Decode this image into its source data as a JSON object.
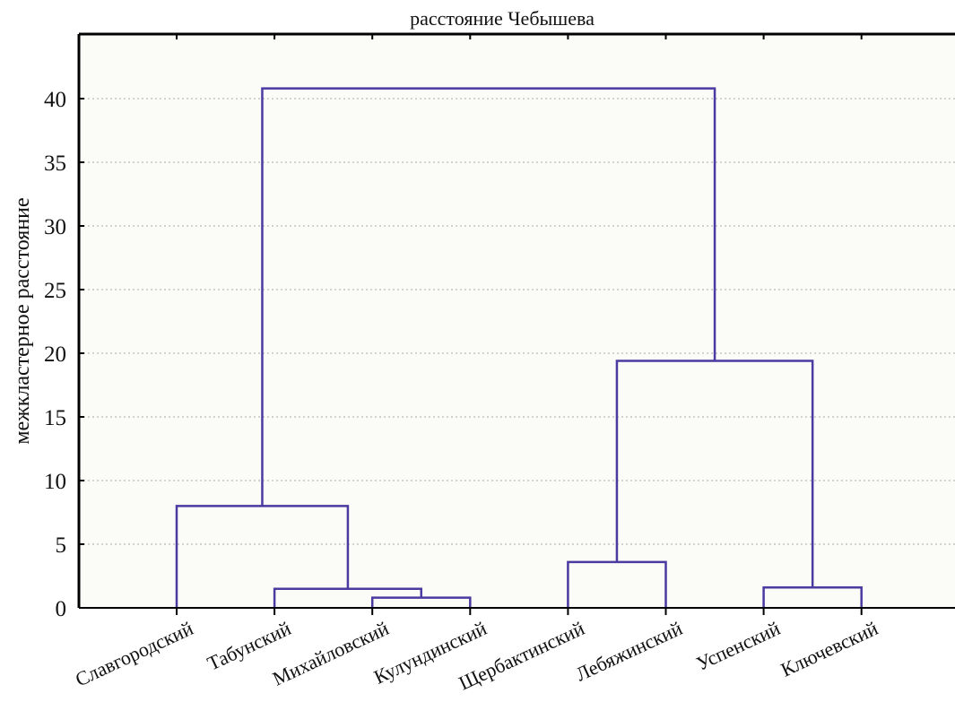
{
  "chart_data": {
    "type": "dendrogram",
    "title": "расстояние Чебышева",
    "ylabel": "межкластерное расстояние",
    "xlabel": "",
    "ylim": [
      0,
      45
    ],
    "yticks": [
      0,
      5,
      10,
      15,
      20,
      25,
      30,
      35,
      40
    ],
    "grid": true,
    "categories": [
      "Славгородский",
      "Табунский",
      "Михайловский",
      "Кулундинский",
      "Щербактинский",
      "Лебяжинский",
      "Успенский",
      "Ключевский"
    ],
    "merges": [
      {
        "left": "Михайловский",
        "right": "Кулундинский",
        "height": 0.8
      },
      {
        "left": "Табунский",
        "right": "Михайловский+Кулундинский",
        "height": 1.5
      },
      {
        "left": "Успенский",
        "right": "Ключевский",
        "height": 1.6
      },
      {
        "left": "Щербактинский",
        "right": "Лебяжинский",
        "height": 3.6
      },
      {
        "left": "Славгородский",
        "right": "Табунский+Михайловский+Кулундинский",
        "height": 8.0
      },
      {
        "left": "Щербактинский+Лебяжинский",
        "right": "Успенский+Ключевский",
        "height": 19.4
      },
      {
        "left": "Славгородский+Табунский+Михайловский+Кулундинский",
        "right": "Щербактинский+Лебяжинский+Успенский+Ключевский",
        "height": 40.8
      }
    ],
    "colors": {
      "link": "#4b3aa0",
      "axis": "#000000",
      "grid": "#a8a8a8",
      "background": "#fbfbf7"
    }
  }
}
